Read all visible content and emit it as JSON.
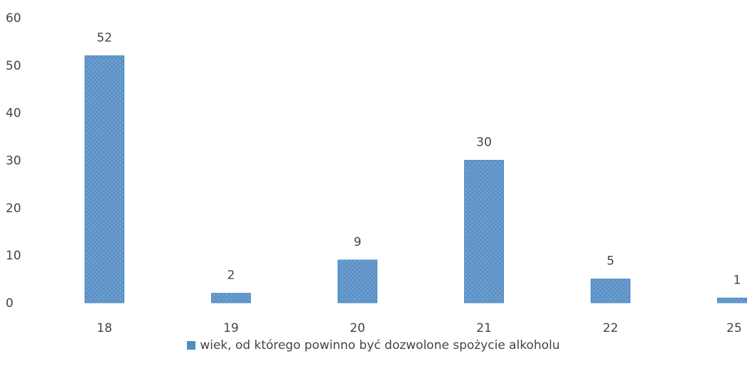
{
  "chart_data": {
    "type": "bar",
    "categories": [
      "18",
      "19",
      "20",
      "21",
      "22",
      "25"
    ],
    "series": [
      {
        "name": "wiek, od którego powinno być dozwolone spożycie alkoholu",
        "values": [
          52,
          2,
          9,
          30,
          5,
          1
        ],
        "color": "#4a8fc4"
      }
    ],
    "ylim": [
      0,
      60
    ],
    "yticks": [
      "0",
      "10",
      "20",
      "30",
      "40",
      "50",
      "60"
    ],
    "grid": false,
    "legend_position": "bottom",
    "data_labels": [
      "52",
      "2",
      "9",
      "30",
      "5",
      "1"
    ]
  },
  "legend": {
    "label": "wiek, od którego powinno być dozwolone spożycie alkoholu"
  }
}
